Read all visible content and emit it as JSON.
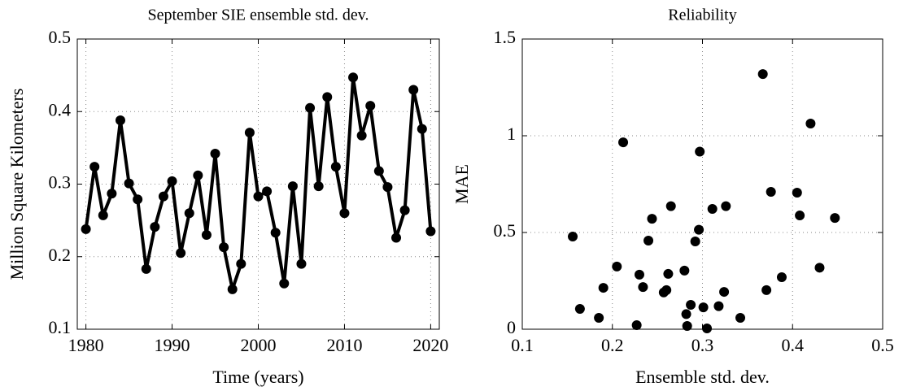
{
  "chart_data": [
    {
      "type": "line",
      "title": "September SIE ensemble std. dev.",
      "xlabel": "Time (years)",
      "ylabel": "Million Square Kilometers",
      "x": [
        1980,
        1981,
        1982,
        1983,
        1984,
        1985,
        1986,
        1987,
        1988,
        1989,
        1990,
        1991,
        1992,
        1993,
        1994,
        1995,
        1996,
        1997,
        1998,
        1999,
        2000,
        2001,
        2002,
        2003,
        2004,
        2005,
        2006,
        2007,
        2008,
        2009,
        2010,
        2011,
        2012,
        2013,
        2014,
        2015,
        2016,
        2017,
        2018,
        2019,
        2020
      ],
      "values": [
        0.238,
        0.324,
        0.257,
        0.287,
        0.388,
        0.301,
        0.279,
        0.183,
        0.241,
        0.283,
        0.304,
        0.205,
        0.26,
        0.312,
        0.23,
        0.342,
        0.213,
        0.155,
        0.19,
        0.371,
        0.283,
        0.29,
        0.233,
        0.163,
        0.297,
        0.19,
        0.405,
        0.297,
        0.42,
        0.324,
        0.26,
        0.447,
        0.367,
        0.408,
        0.318,
        0.296,
        0.226,
        0.264,
        0.43,
        0.376,
        0.235
      ],
      "color": "#000000",
      "xlim": [
        1979,
        2021
      ],
      "ylim": [
        0.1,
        0.5
      ],
      "xticks": [
        1980,
        1990,
        2000,
        2010,
        2020
      ],
      "yticks": [
        0.1,
        0.2,
        0.3,
        0.4,
        0.5
      ],
      "grid": true
    },
    {
      "type": "scatter",
      "title": "Reliability",
      "xlabel": "Ensemble std. dev.",
      "ylabel": "MAE",
      "x": [
        0.156,
        0.164,
        0.185,
        0.19,
        0.205,
        0.212,
        0.227,
        0.23,
        0.234,
        0.24,
        0.244,
        0.257,
        0.26,
        0.262,
        0.265,
        0.28,
        0.282,
        0.283,
        0.287,
        0.292,
        0.296,
        0.297,
        0.301,
        0.305,
        0.311,
        0.318,
        0.324,
        0.326,
        0.342,
        0.367,
        0.371,
        0.376,
        0.388,
        0.405,
        0.408,
        0.42,
        0.43,
        0.447
      ],
      "values": [
        0.479,
        0.105,
        0.059,
        0.214,
        0.324,
        0.966,
        0.021,
        0.282,
        0.218,
        0.458,
        0.571,
        0.19,
        0.202,
        0.286,
        0.636,
        0.303,
        0.078,
        0.017,
        0.126,
        0.454,
        0.514,
        0.918,
        0.113,
        0.004,
        0.622,
        0.119,
        0.193,
        0.636,
        0.059,
        1.319,
        0.202,
        0.71,
        0.269,
        0.706,
        0.588,
        1.063,
        0.318,
        0.575
      ],
      "color": "#000000",
      "xlim": [
        0.1,
        0.5
      ],
      "ylim": [
        0,
        1.5
      ],
      "xticks": [
        0.1,
        0.2,
        0.3,
        0.4,
        0.5
      ],
      "yticks": [
        0,
        0.5,
        1,
        1.5
      ],
      "grid": true
    }
  ]
}
